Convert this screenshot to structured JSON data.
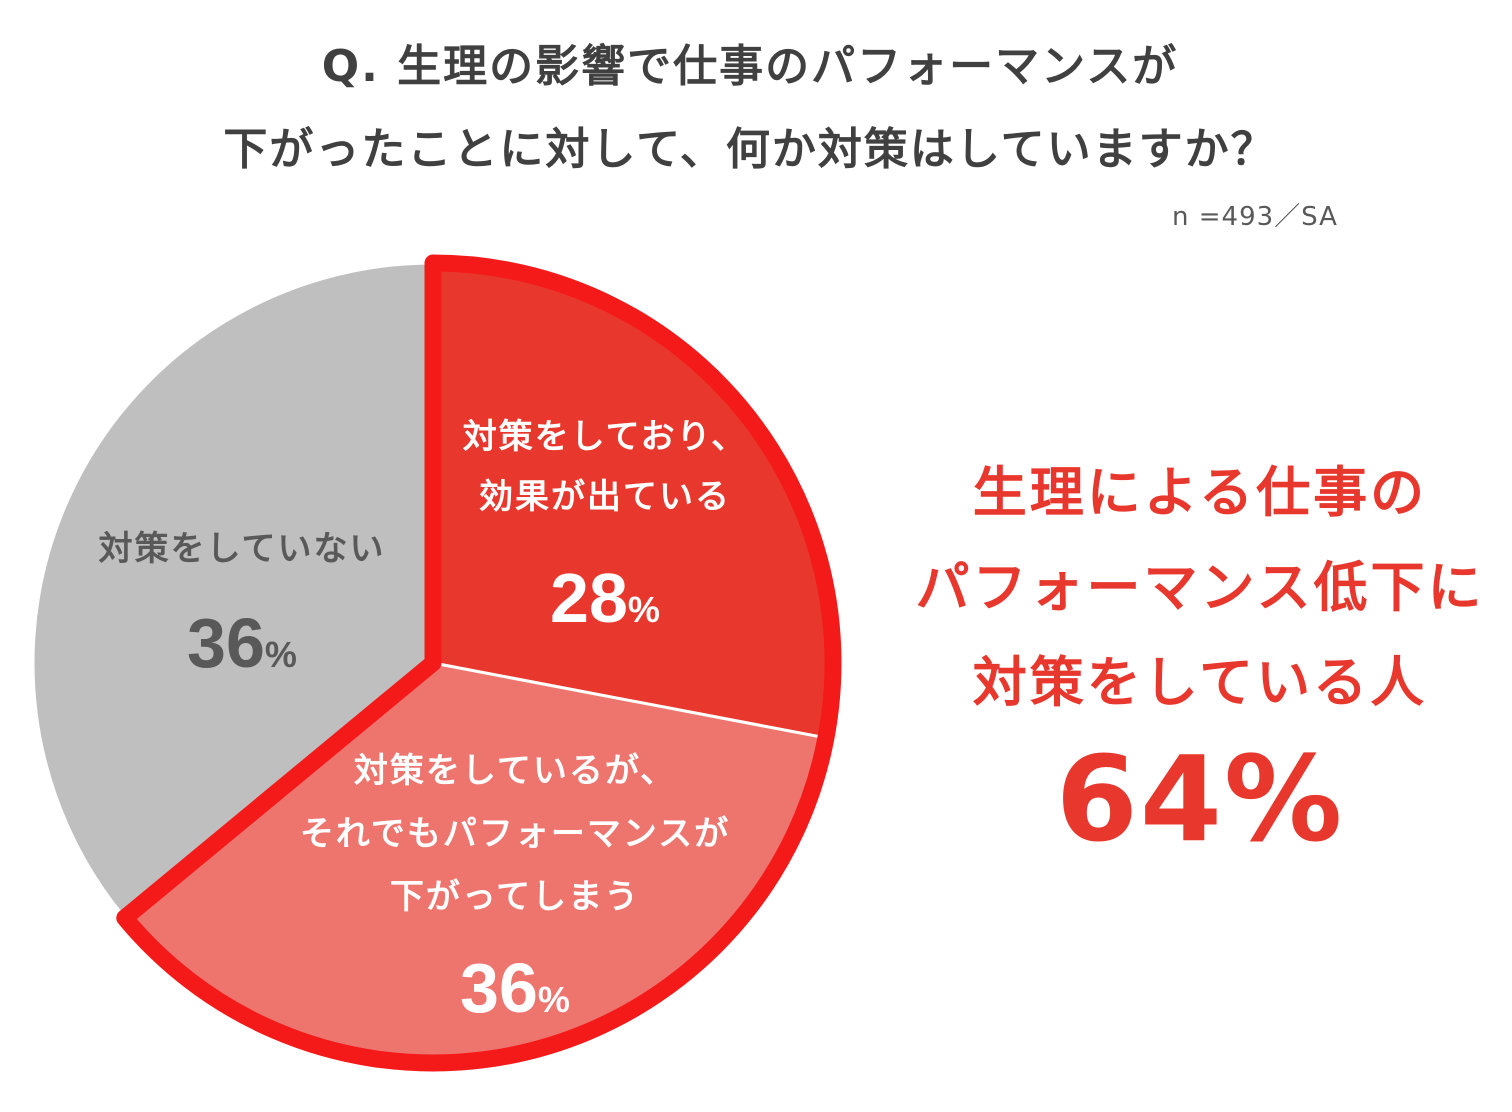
{
  "question": {
    "line1": "Q. 生理の影響で仕事のパフォーマンスが",
    "line2": "下がったことに対して、何か対策はしていますか？"
  },
  "sample_note": "n =493／SA",
  "summary": {
    "line1": "生理による仕事の",
    "line2": "パフォーマンス低下に",
    "line3": "対策をしている人",
    "value": "64%"
  },
  "colors": {
    "effective": "#e8382e",
    "still_down": "#ee746e",
    "none": "#bfbfbf",
    "highlight_border": "#f41a1a",
    "label_dark": "#595959",
    "title": "#404040"
  },
  "chart_data": {
    "type": "pie",
    "title": "Q. 生理の影響で仕事のパフォーマンスが下がったことに対して、何か対策はしていますか？",
    "start": "12 o'clock, clockwise",
    "slices": [
      {
        "label_lines": [
          "対策をしており、",
          "効果が出ている"
        ],
        "value": 28,
        "value_text": "28",
        "unit": "%",
        "color": "#e8382e",
        "highlighted": true
      },
      {
        "label_lines": [
          "対策をしているが、",
          "それでもパフォーマンスが",
          "下がってしまう"
        ],
        "value": 36,
        "value_text": "36",
        "unit": "%",
        "color": "#ee746e",
        "highlighted": true
      },
      {
        "label_lines": [
          "対策をしていない"
        ],
        "value": 36,
        "value_text": "36",
        "unit": "%",
        "color": "#bfbfbf",
        "highlighted": false
      }
    ]
  }
}
